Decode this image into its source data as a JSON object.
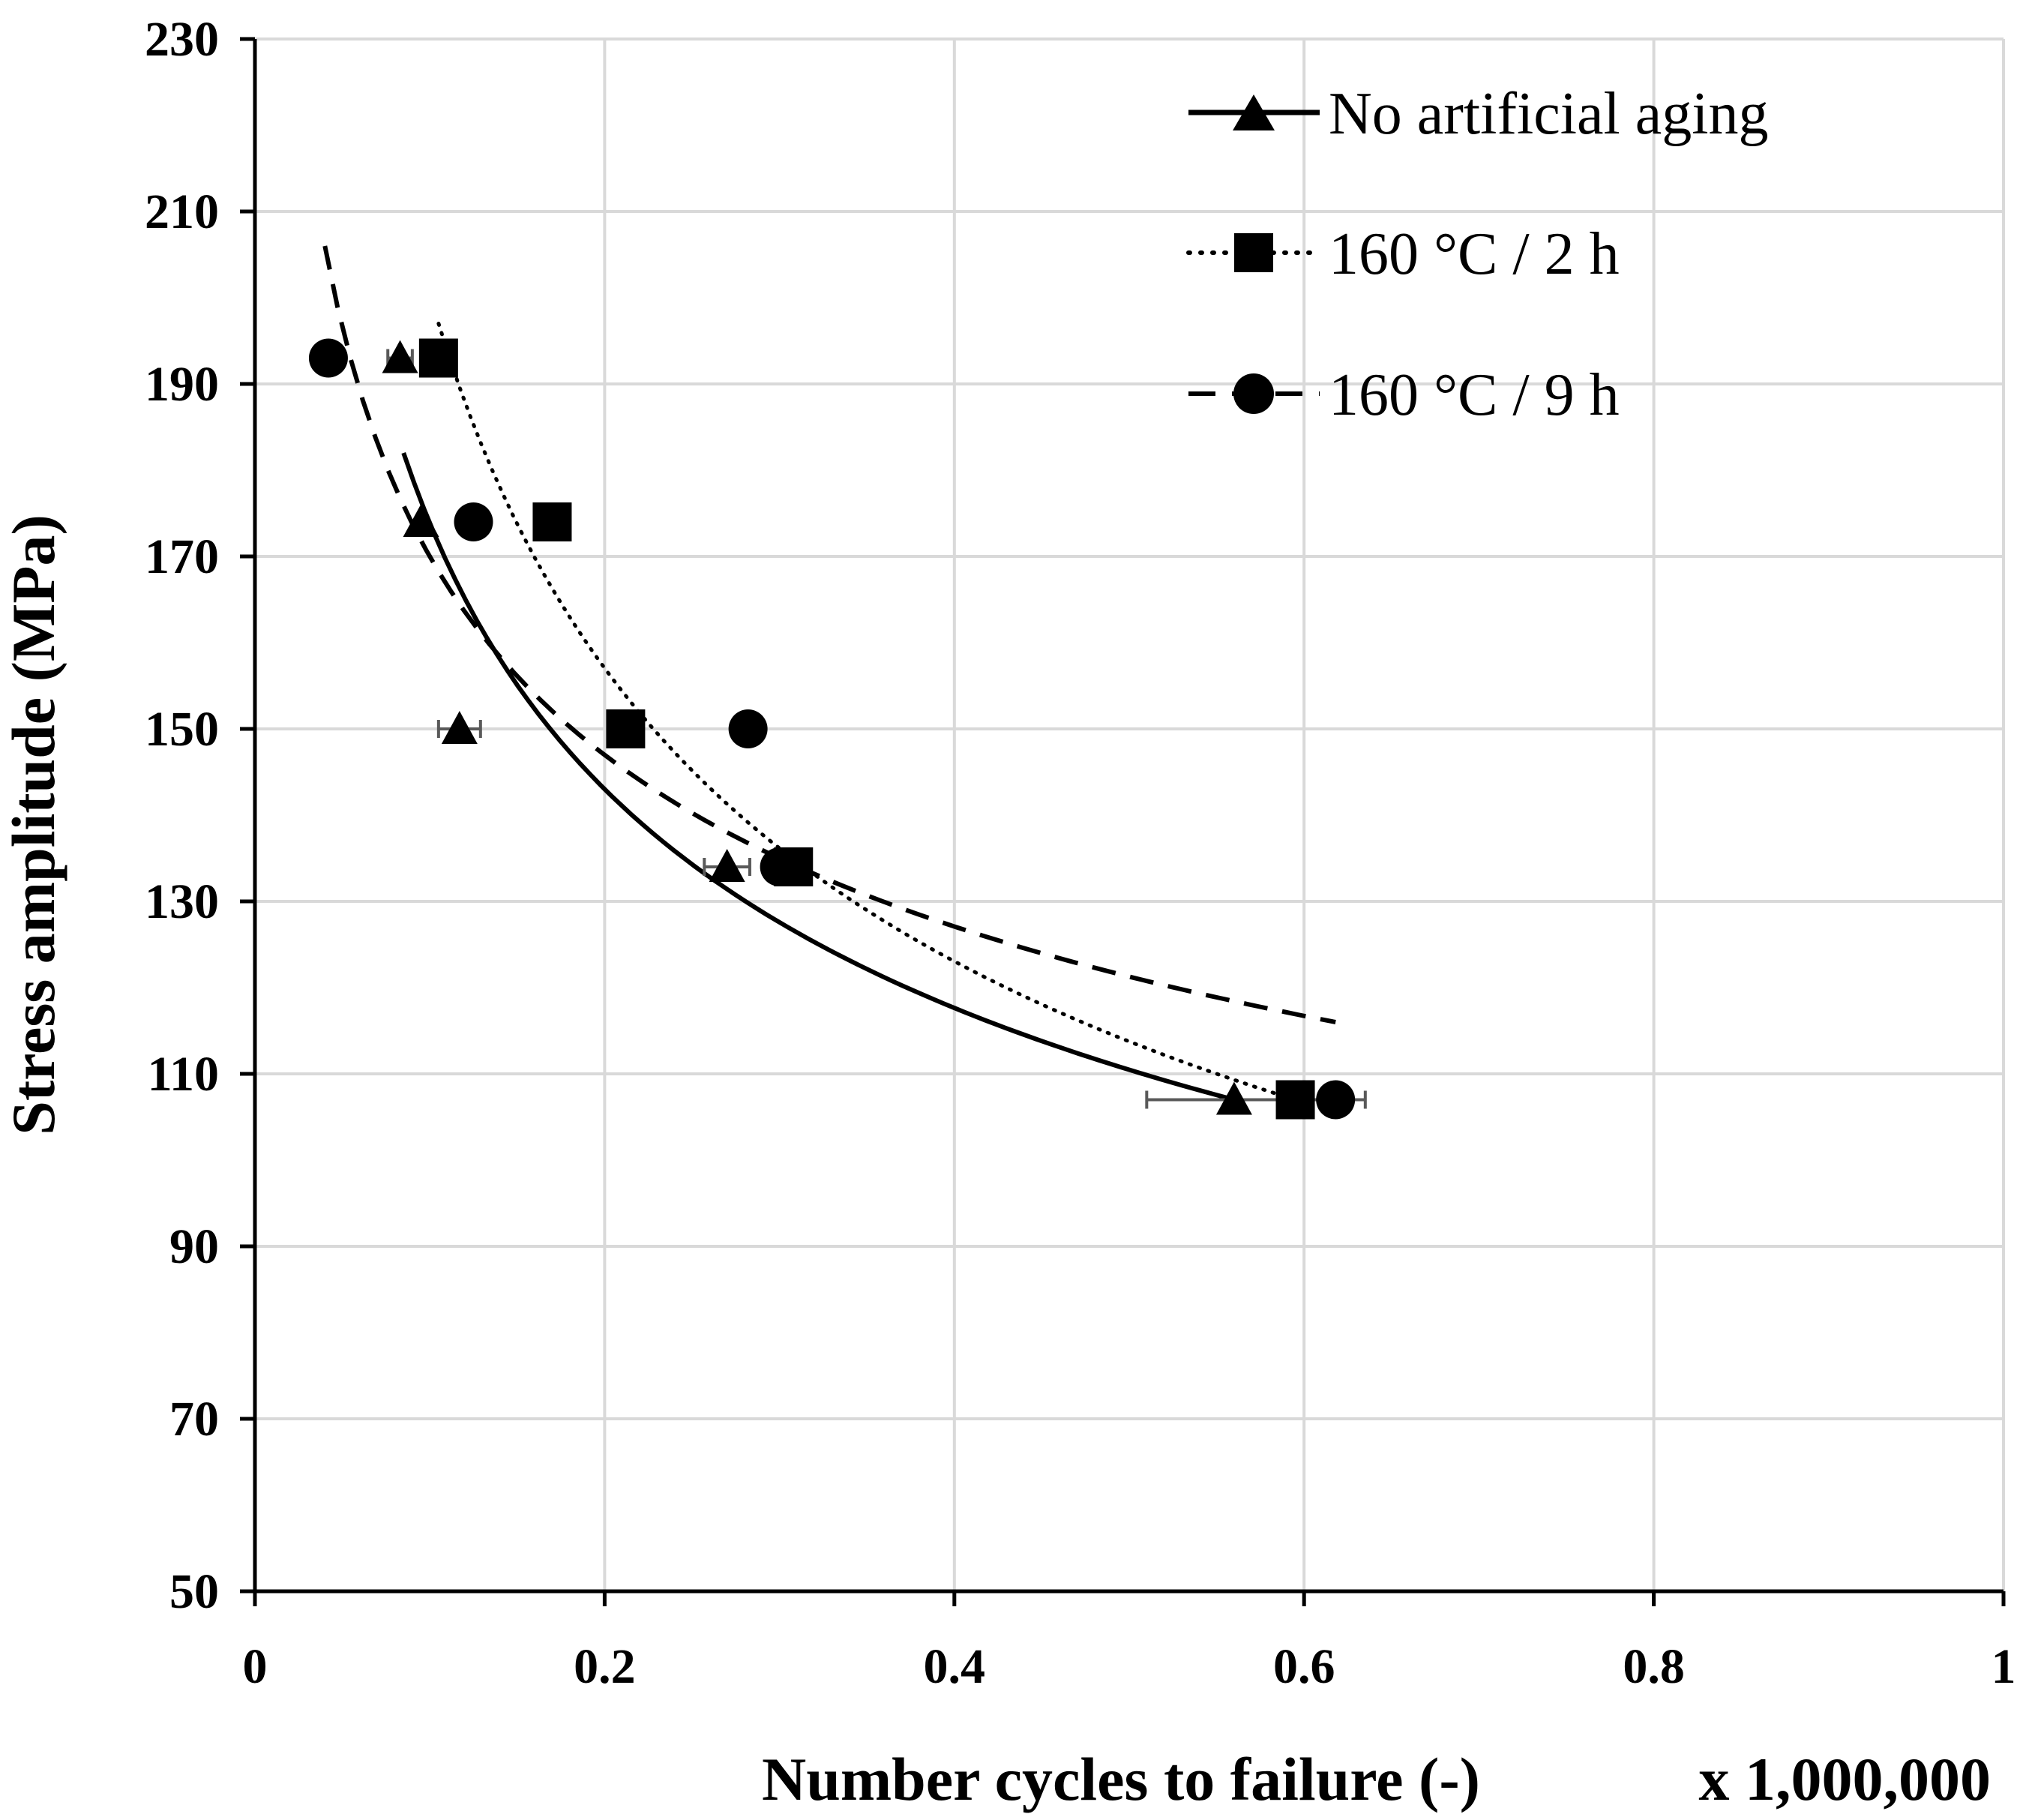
{
  "chart_data": {
    "type": "scatter",
    "title": "",
    "xlabel": "Number cycles to failure (-)",
    "x_multiplier_label": "x 1,000,000",
    "ylabel": "Stress amplitude (MPa)",
    "xlim": [
      0,
      1
    ],
    "ylim": [
      50,
      230
    ],
    "x_ticks": [
      0,
      0.2,
      0.4,
      0.6,
      0.8,
      1
    ],
    "x_tick_labels": [
      "0",
      "0.2",
      "0.4",
      "0.6",
      "0.8",
      "1"
    ],
    "y_ticks": [
      50,
      70,
      90,
      110,
      130,
      150,
      170,
      190,
      210,
      230
    ],
    "y_tick_labels": [
      "50",
      "70",
      "90",
      "110",
      "130",
      "150",
      "170",
      "190",
      "210",
      "230"
    ],
    "grid": true,
    "legend_position": "top-right",
    "series": [
      {
        "name": "No artificial aging",
        "marker": "triangle",
        "line_style": "solid",
        "points": [
          {
            "x": 0.083,
            "y": 193,
            "xerr": 0.007
          },
          {
            "x": 0.095,
            "y": 174,
            "xerr": 0
          },
          {
            "x": 0.117,
            "y": 150,
            "xerr": 0.012
          },
          {
            "x": 0.27,
            "y": 134,
            "xerr": 0.013
          },
          {
            "x": 0.56,
            "y": 107,
            "xerr": 0.05
          }
        ],
        "trend": {
          "x_start": 0.085,
          "x_end": 0.56,
          "y_start": 182,
          "y_end": 107
        }
      },
      {
        "name": "160 °C / 2 h",
        "marker": "square",
        "line_style": "dotted",
        "points": [
          {
            "x": 0.105,
            "y": 193,
            "xerr": 0
          },
          {
            "x": 0.17,
            "y": 174,
            "xerr": 0
          },
          {
            "x": 0.212,
            "y": 150,
            "xerr": 0
          },
          {
            "x": 0.308,
            "y": 134,
            "xerr": 0
          },
          {
            "x": 0.595,
            "y": 107,
            "xerr": 0
          }
        ],
        "trend": {
          "x_start": 0.105,
          "x_end": 0.595,
          "y_start": 197,
          "y_end": 107
        }
      },
      {
        "name": "160 °C / 9 h",
        "marker": "circle",
        "line_style": "dashed",
        "points": [
          {
            "x": 0.042,
            "y": 193,
            "xerr": 0
          },
          {
            "x": 0.125,
            "y": 174,
            "xerr": 0
          },
          {
            "x": 0.282,
            "y": 150,
            "xerr": 0
          },
          {
            "x": 0.3,
            "y": 134,
            "xerr": 0
          },
          {
            "x": 0.618,
            "y": 107,
            "xerr": 0.017
          }
        ],
        "trend": {
          "x_start": 0.04,
          "x_end": 0.618,
          "y_start": 206,
          "y_end": 116
        }
      }
    ]
  }
}
